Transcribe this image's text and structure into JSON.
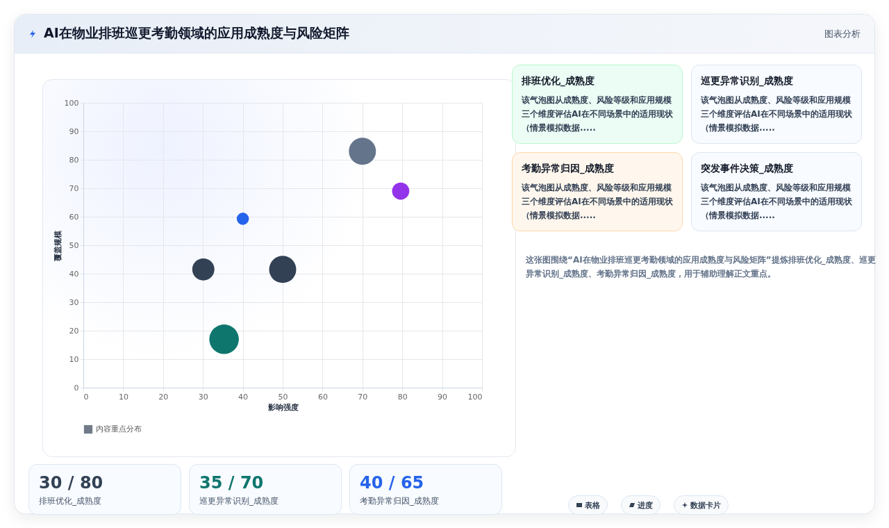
{
  "chart_data": [
    {
      "type": "bubble",
      "title": "AI在物业排班巡更考勤领域的应用成熟度与风险矩阵",
      "annotations": [
        "图表分析"
      ],
      "xlabel": "影响强度",
      "ylabel": "覆盖规模",
      "xlim": [
        0,
        100
      ],
      "ylim": [
        0,
        100
      ],
      "xticks": [
        0,
        10,
        20,
        30,
        40,
        50,
        60,
        70,
        80,
        90,
        100
      ],
      "yticks": [
        0,
        10,
        20,
        30,
        40,
        50,
        60,
        70,
        80,
        90,
        100
      ],
      "grid": true,
      "legend": "bottom",
      "series": [
        {
          "name": "内容重点分布",
          "color": "#334155",
          "x": [
            30.1,
            50,
            35.3,
            40,
            70,
            79.6
          ],
          "values": [
            41.5,
            41.5,
            17,
            59.3,
            83,
            69
          ],
          "sizes": [
            0.56,
            0.84,
            1,
            0.17,
            0.84,
            0.34
          ],
          "colors": [
            "#334155",
            "#334155",
            "#0f766e",
            "#2563eb",
            "#64748b",
            "#9333ea"
          ]
        }
      ]
    },
    {
      "type": "other",
      "title": "排班优化_成熟度",
      "annotations": [
        "该气泡图从成熟度、风险等级和应用规模三个维度评估AI在不同场景中的适用现状（情景模拟数据....."
      ]
    },
    {
      "type": "other",
      "title": "巡更异常识别_成熟度",
      "annotations": [
        "该气泡图从成熟度、风险等级和应用规模三个维度评估AI在不同场景中的适用现状（情景模拟数据....."
      ]
    },
    {
      "type": "other",
      "title": "考勤异常归因_成熟度",
      "annotations": [
        "该气泡图从成熟度、风险等级和应用规模三个维度评估AI在不同场景中的适用现状（情景模拟数据....."
      ]
    },
    {
      "type": "other",
      "title": "突发事件决策_成熟度",
      "annotations": [
        "该气泡图从成熟度、风险等级和应用规模三个维度评估AI在不同场景中的适用现状（情景模拟数据....."
      ]
    },
    {
      "type": "other",
      "annotations": [
        "这张图围绕“AI在物业排班巡更考勤领域的应用成熟度与风险矩阵”提炼排班优化_成熟度、巡更异常识别_成熟度、考勤异常归因_成熟度，用于辅助理解正文重点。"
      ]
    },
    {
      "type": "other",
      "title": "30 / 80",
      "annotations": [
        "排班优化_成熟度"
      ]
    },
    {
      "type": "other",
      "title": "35 / 70",
      "annotations": [
        "巡更异常识别_成熟度"
      ]
    },
    {
      "type": "other",
      "title": "40 / 65",
      "annotations": [
        "考勤异常归因_成熟度"
      ]
    },
    {
      "type": "other",
      "annotations": [
        "表格",
        "进度",
        "数据卡片"
      ]
    }
  ]
}
